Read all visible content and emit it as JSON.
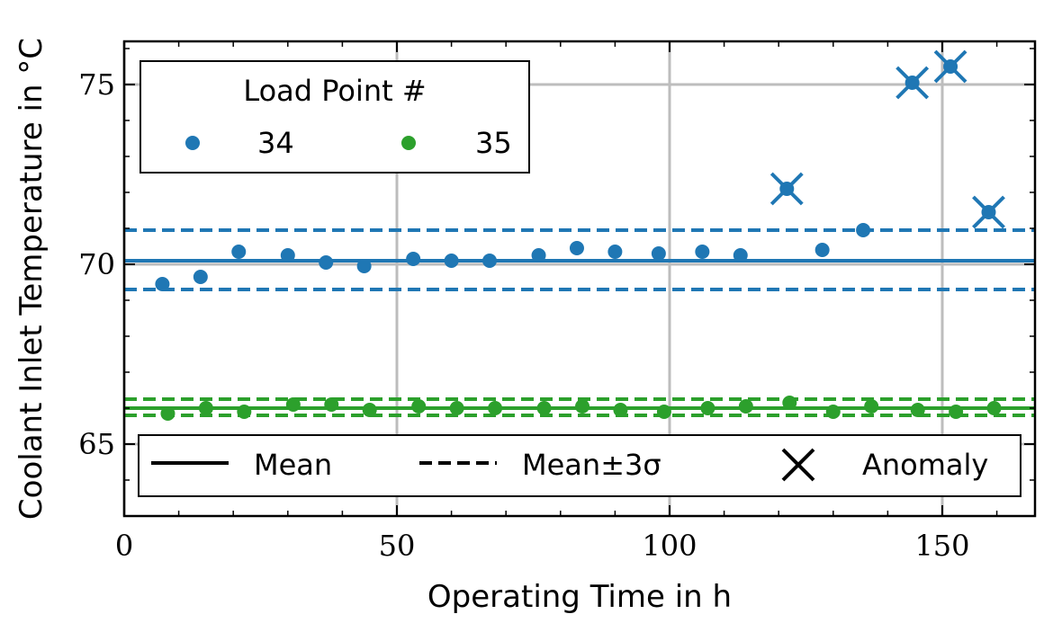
{
  "chart_data": {
    "type": "scatter",
    "xlabel": "Operating Time in h",
    "ylabel": "Coolant Inlet Temperature in °C",
    "xlim": [
      0,
      167
    ],
    "ylim": [
      63.0,
      76.2
    ],
    "x_ticks": [
      0,
      50,
      100,
      150
    ],
    "x_tick_labels": [
      "0",
      "50",
      "100",
      "150"
    ],
    "y_ticks": [
      65,
      70,
      75
    ],
    "y_tick_labels": [
      "65",
      "70",
      "75"
    ],
    "grid": true,
    "legend_title": "Load Point #",
    "legend_placement": "top-left",
    "style_legend_placement": "bottom",
    "style_legend": {
      "mean": "Mean",
      "bounds": "Mean±3σ",
      "anomaly": "Anomaly"
    },
    "series": [
      {
        "name": "34",
        "color": "#1f77b4",
        "mean": 70.1,
        "upper_3sigma": 70.95,
        "lower_3sigma": 69.3,
        "x": [
          7,
          14,
          21,
          30,
          37,
          44,
          53,
          60,
          67,
          76,
          83,
          90,
          98,
          106,
          113,
          128,
          135.5
        ],
        "y": [
          69.45,
          69.65,
          70.35,
          70.25,
          70.05,
          69.95,
          70.15,
          70.1,
          70.1,
          70.25,
          70.45,
          70.35,
          70.3,
          70.35,
          70.25,
          70.4,
          70.95
        ],
        "anomalies_x": [
          121.5,
          144.5,
          151.5,
          158.5
        ],
        "anomalies_y": [
          72.1,
          75.05,
          75.5,
          71.45
        ]
      },
      {
        "name": "35",
        "color": "#2ca02c",
        "mean": 66.0,
        "upper_3sigma": 66.25,
        "lower_3sigma": 65.8,
        "x": [
          8,
          15,
          22,
          31,
          38,
          45,
          54,
          61,
          68,
          77,
          84,
          91,
          99,
          107,
          114,
          122,
          130,
          137,
          145.5,
          152.5,
          159.5
        ],
        "y": [
          65.85,
          66.0,
          65.9,
          66.1,
          66.1,
          65.95,
          66.05,
          66.0,
          66.0,
          66.0,
          66.05,
          65.95,
          65.9,
          66.0,
          66.05,
          66.15,
          65.9,
          66.05,
          65.95,
          65.9,
          66.0
        ],
        "anomalies_x": [],
        "anomalies_y": []
      }
    ]
  }
}
